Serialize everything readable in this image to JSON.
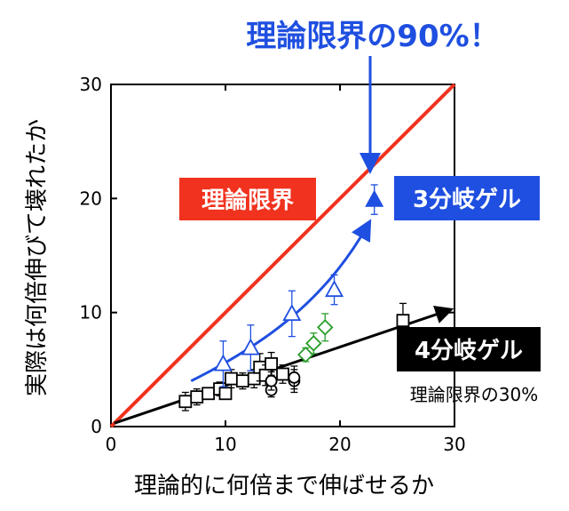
{
  "chart_data": {
    "type": "scatter",
    "title": "",
    "xlabel": "理論的に何倍まで伸ばせるか",
    "ylabel": "実際は何倍伸びて壊れたか",
    "xlim": [
      0,
      30
    ],
    "ylim": [
      0,
      30
    ],
    "xticks": [
      "0",
      "10",
      "20",
      "30"
    ],
    "yticks": [
      "0",
      "10",
      "20",
      "30"
    ],
    "grid": false,
    "series": [
      {
        "name": "",
        "marker": "square-open",
        "color": "#000000",
        "points": [
          {
            "x": 6.5,
            "y": 2.2,
            "err": 0.8
          },
          {
            "x": 7.5,
            "y": 2.6,
            "err": 0.7
          },
          {
            "x": 8.5,
            "y": 2.9,
            "err": 0.5
          },
          {
            "x": 9.5,
            "y": 3.3,
            "err": 0.6
          },
          {
            "x": 10.0,
            "y": 2.9,
            "err": 0.5
          },
          {
            "x": 10.5,
            "y": 4.2,
            "err": 0.8
          },
          {
            "x": 11.5,
            "y": 4.0,
            "err": 0.7
          },
          {
            "x": 12.5,
            "y": 4.2,
            "err": 0.8
          },
          {
            "x": 13.0,
            "y": 5.2,
            "err": 1.2
          },
          {
            "x": 13.5,
            "y": 4.5,
            "err": 0.9
          },
          {
            "x": 14.0,
            "y": 5.5,
            "err": 1.0
          },
          {
            "x": 15.0,
            "y": 4.6,
            "err": 0.8
          },
          {
            "x": 25.5,
            "y": 9.3,
            "err": 1.5
          }
        ]
      },
      {
        "name": "",
        "marker": "circle-open",
        "color": "#000000",
        "points": [
          {
            "x": 14.0,
            "y": 3.2,
            "err": 0.6
          },
          {
            "x": 14.0,
            "y": 4.0,
            "err": 0.8
          },
          {
            "x": 16.0,
            "y": 4.0,
            "err": 1.0
          },
          {
            "x": 16.0,
            "y": 4.3,
            "err": 1.0
          }
        ]
      },
      {
        "name": "",
        "marker": "diamond-open",
        "color": "#2a9d2a",
        "points": [
          {
            "x": 17.0,
            "y": 6.3,
            "err": 0.6
          },
          {
            "x": 17.7,
            "y": 7.3,
            "err": 0.9
          },
          {
            "x": 18.7,
            "y": 8.7,
            "err": 1.2
          }
        ]
      },
      {
        "name": "",
        "marker": "triangle-open",
        "color": "#1f4fe0",
        "points": [
          {
            "x": 9.8,
            "y": 5.5,
            "err": 2.0
          },
          {
            "x": 12.2,
            "y": 6.9,
            "err": 2.0
          },
          {
            "x": 15.8,
            "y": 9.9,
            "err": 2.0
          },
          {
            "x": 19.5,
            "y": 12.0,
            "err": 1.3
          }
        ]
      },
      {
        "name": "",
        "marker": "triangle-filled",
        "color": "#1f4fe0",
        "points": [
          {
            "x": 23.0,
            "y": 19.9,
            "err": 1.3
          }
        ]
      }
    ],
    "lines": [
      {
        "label": "理論限界",
        "color": "#f0321e",
        "from": [
          0,
          0
        ],
        "to": [
          30,
          30
        ]
      },
      {
        "label": "4分岐ゲル",
        "color": "#000000",
        "from": [
          0.3,
          0.3
        ],
        "to": [
          29.5,
          10.2
        ],
        "arrow": true
      },
      {
        "label": "3分岐ゲル",
        "color": "#1f4fe0",
        "curve": [
          [
            7,
            4
          ],
          [
            14,
            7.5
          ],
          [
            19,
            11.5
          ],
          [
            22.5,
            17.8
          ]
        ],
        "arrow": true
      }
    ],
    "annotations": {
      "top": "理論限界の90%！",
      "theory_limit": "理論限界",
      "three_branch": "3分岐ゲル",
      "four_branch": "4分岐ゲル",
      "thirty_pct": "理論限界の30%"
    }
  }
}
